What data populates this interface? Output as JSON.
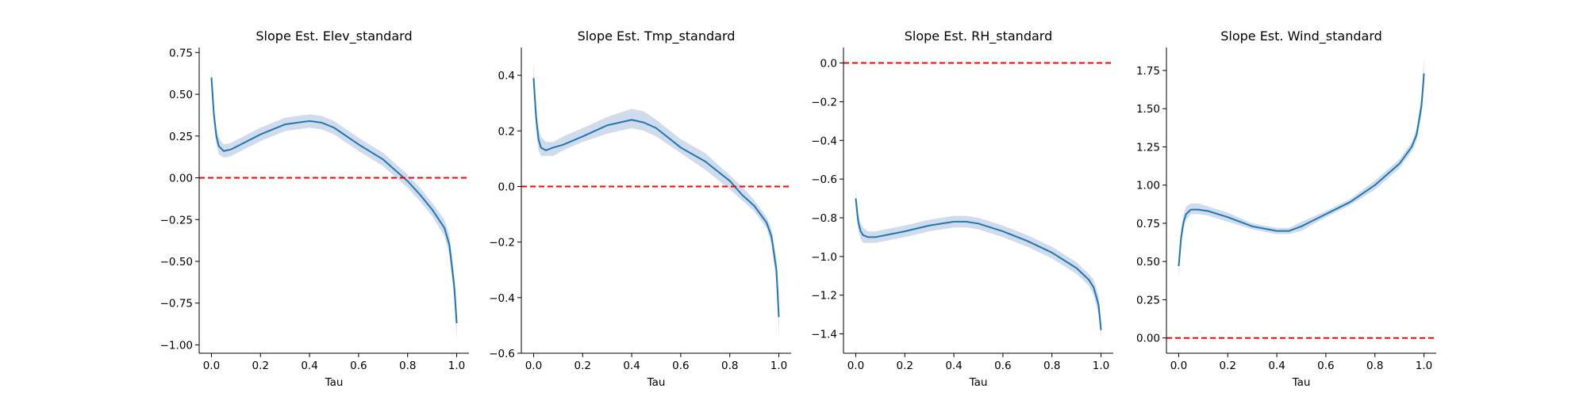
{
  "chart_data": [
    {
      "type": "line",
      "title": "Slope Est. Elev_standard",
      "xlabel": "Tau",
      "ylabel": "",
      "xlim": [
        -0.05,
        1.05
      ],
      "ylim": [
        -1.05,
        0.78
      ],
      "xticks": [
        0.0,
        0.2,
        0.4,
        0.6,
        0.8,
        1.0
      ],
      "yticks": [
        -1.0,
        -0.75,
        -0.5,
        -0.25,
        0.0,
        0.25,
        0.5,
        0.75
      ],
      "xtick_labels": [
        "0.0",
        "0.2",
        "0.4",
        "0.6",
        "0.8",
        "1.0"
      ],
      "ytick_labels": [
        "−1.00",
        "−0.75",
        "−0.50",
        "−0.25",
        "0.00",
        "0.25",
        "0.50",
        "0.75"
      ],
      "reference_line": 0.0,
      "series": [
        {
          "x": [
            0.0,
            0.01,
            0.02,
            0.03,
            0.05,
            0.08,
            0.12,
            0.2,
            0.3,
            0.4,
            0.45,
            0.5,
            0.6,
            0.7,
            0.8,
            0.85,
            0.9,
            0.95,
            0.97,
            0.99,
            1.0
          ],
          "y": [
            0.6,
            0.38,
            0.25,
            0.19,
            0.16,
            0.17,
            0.2,
            0.26,
            0.32,
            0.34,
            0.33,
            0.3,
            0.2,
            0.11,
            -0.02,
            -0.1,
            -0.19,
            -0.3,
            -0.4,
            -0.65,
            -0.87
          ],
          "lower": [
            0.53,
            0.33,
            0.2,
            0.14,
            0.12,
            0.13,
            0.16,
            0.22,
            0.28,
            0.3,
            0.29,
            0.26,
            0.16,
            0.07,
            -0.06,
            -0.14,
            -0.23,
            -0.35,
            -0.46,
            -0.72,
            -0.97
          ],
          "upper": [
            0.67,
            0.43,
            0.3,
            0.24,
            0.2,
            0.21,
            0.24,
            0.3,
            0.36,
            0.38,
            0.37,
            0.34,
            0.24,
            0.15,
            0.02,
            -0.06,
            -0.15,
            -0.25,
            -0.34,
            -0.58,
            -0.77
          ]
        }
      ]
    },
    {
      "type": "line",
      "title": "Slope Est. Tmp_standard",
      "xlabel": "Tau",
      "ylabel": "",
      "xlim": [
        -0.05,
        1.05
      ],
      "ylim": [
        -0.6,
        0.5
      ],
      "xticks": [
        0.0,
        0.2,
        0.4,
        0.6,
        0.8,
        1.0
      ],
      "yticks": [
        -0.6,
        -0.4,
        -0.2,
        0.0,
        0.2,
        0.4
      ],
      "xtick_labels": [
        "0.0",
        "0.2",
        "0.4",
        "0.6",
        "0.8",
        "1.0"
      ],
      "ytick_labels": [
        "−0.6",
        "−0.4",
        "−0.2",
        "0.0",
        "0.2",
        "0.4"
      ],
      "reference_line": 0.0,
      "series": [
        {
          "x": [
            0.0,
            0.01,
            0.02,
            0.03,
            0.05,
            0.08,
            0.12,
            0.2,
            0.3,
            0.4,
            0.45,
            0.5,
            0.6,
            0.7,
            0.8,
            0.85,
            0.9,
            0.95,
            0.97,
            0.99,
            1.0
          ],
          "y": [
            0.39,
            0.25,
            0.17,
            0.14,
            0.13,
            0.14,
            0.15,
            0.18,
            0.22,
            0.24,
            0.23,
            0.21,
            0.14,
            0.09,
            0.02,
            -0.03,
            -0.07,
            -0.13,
            -0.18,
            -0.3,
            -0.47
          ],
          "lower": [
            0.35,
            0.21,
            0.13,
            0.11,
            0.11,
            0.11,
            0.13,
            0.16,
            0.19,
            0.21,
            0.2,
            0.18,
            0.12,
            0.06,
            -0.01,
            -0.05,
            -0.09,
            -0.15,
            -0.21,
            -0.34,
            -0.55
          ],
          "upper": [
            0.45,
            0.29,
            0.21,
            0.18,
            0.16,
            0.16,
            0.18,
            0.21,
            0.25,
            0.28,
            0.27,
            0.24,
            0.17,
            0.12,
            0.04,
            0.0,
            -0.05,
            -0.11,
            -0.15,
            -0.26,
            -0.4
          ]
        }
      ]
    },
    {
      "type": "line",
      "title": "Slope Est. RH_standard",
      "xlabel": "Tau",
      "ylabel": "",
      "xlim": [
        -0.05,
        1.05
      ],
      "ylim": [
        -1.5,
        0.08
      ],
      "xticks": [
        0.0,
        0.2,
        0.4,
        0.6,
        0.8,
        1.0
      ],
      "yticks": [
        -1.4,
        -1.2,
        -1.0,
        -0.8,
        -0.6,
        -0.4,
        -0.2,
        0.0
      ],
      "xtick_labels": [
        "0.0",
        "0.2",
        "0.4",
        "0.6",
        "0.8",
        "1.0"
      ],
      "ytick_labels": [
        "−1.4",
        "−1.2",
        "−1.0",
        "−0.8",
        "−0.6",
        "−0.4",
        "−0.2",
        "0.0"
      ],
      "reference_line": 0.0,
      "series": [
        {
          "x": [
            0.0,
            0.01,
            0.02,
            0.03,
            0.05,
            0.08,
            0.12,
            0.2,
            0.3,
            0.4,
            0.45,
            0.5,
            0.6,
            0.7,
            0.8,
            0.85,
            0.9,
            0.95,
            0.97,
            0.99,
            1.0
          ],
          "y": [
            -0.7,
            -0.82,
            -0.87,
            -0.89,
            -0.9,
            -0.9,
            -0.89,
            -0.87,
            -0.84,
            -0.82,
            -0.82,
            -0.83,
            -0.87,
            -0.92,
            -0.98,
            -1.02,
            -1.06,
            -1.12,
            -1.16,
            -1.25,
            -1.38
          ],
          "lower": [
            -0.75,
            -0.86,
            -0.91,
            -0.93,
            -0.93,
            -0.93,
            -0.92,
            -0.9,
            -0.87,
            -0.85,
            -0.85,
            -0.86,
            -0.9,
            -0.95,
            -1.01,
            -1.05,
            -1.09,
            -1.15,
            -1.2,
            -1.3,
            -1.43
          ],
          "upper": [
            -0.65,
            -0.78,
            -0.83,
            -0.85,
            -0.87,
            -0.87,
            -0.86,
            -0.84,
            -0.81,
            -0.79,
            -0.79,
            -0.8,
            -0.84,
            -0.89,
            -0.95,
            -0.99,
            -1.03,
            -1.09,
            -1.12,
            -1.2,
            -1.33
          ]
        }
      ]
    },
    {
      "type": "line",
      "title": "Slope Est. Wind_standard",
      "xlabel": "Tau",
      "ylabel": "",
      "xlim": [
        -0.05,
        1.05
      ],
      "ylim": [
        -0.1,
        1.9
      ],
      "xticks": [
        0.0,
        0.2,
        0.4,
        0.6,
        0.8,
        1.0
      ],
      "yticks": [
        0.0,
        0.25,
        0.5,
        0.75,
        1.0,
        1.25,
        1.5,
        1.75
      ],
      "xtick_labels": [
        "0.0",
        "0.2",
        "0.4",
        "0.6",
        "0.8",
        "1.0"
      ],
      "ytick_labels": [
        "0.00",
        "0.25",
        "0.50",
        "0.75",
        "1.00",
        "1.25",
        "1.50",
        "1.75"
      ],
      "reference_line": 0.0,
      "series": [
        {
          "x": [
            0.0,
            0.01,
            0.02,
            0.03,
            0.05,
            0.08,
            0.12,
            0.2,
            0.3,
            0.4,
            0.45,
            0.5,
            0.6,
            0.7,
            0.8,
            0.85,
            0.9,
            0.95,
            0.97,
            0.99,
            1.0
          ],
          "y": [
            0.47,
            0.66,
            0.76,
            0.81,
            0.84,
            0.84,
            0.83,
            0.79,
            0.73,
            0.7,
            0.7,
            0.73,
            0.81,
            0.89,
            1.0,
            1.07,
            1.14,
            1.25,
            1.33,
            1.52,
            1.73
          ],
          "lower": [
            0.4,
            0.61,
            0.72,
            0.77,
            0.81,
            0.81,
            0.8,
            0.76,
            0.71,
            0.68,
            0.68,
            0.7,
            0.79,
            0.87,
            0.97,
            1.04,
            1.11,
            1.22,
            1.29,
            1.46,
            1.64
          ],
          "upper": [
            0.54,
            0.71,
            0.81,
            0.86,
            0.88,
            0.88,
            0.86,
            0.82,
            0.75,
            0.72,
            0.72,
            0.76,
            0.83,
            0.91,
            1.03,
            1.1,
            1.17,
            1.28,
            1.37,
            1.58,
            1.83
          ]
        }
      ]
    }
  ]
}
